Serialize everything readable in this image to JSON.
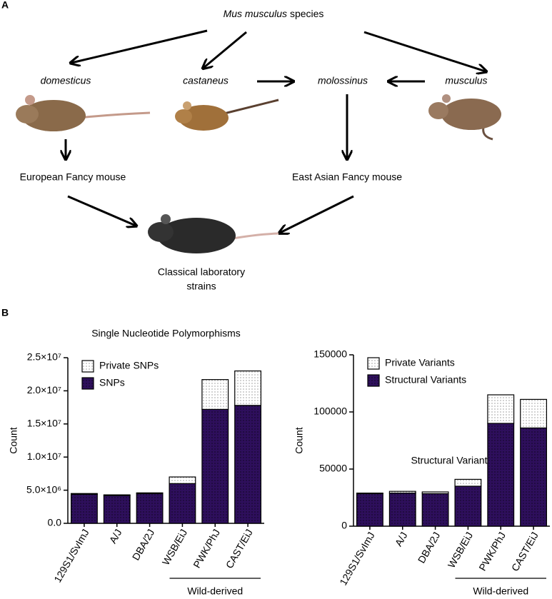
{
  "panel_a": {
    "label": "A",
    "root": {
      "name": "Mus musculus",
      "suffix": "species"
    },
    "subspecies": [
      "domesticus",
      "castaneus",
      "molossinus",
      "musculus"
    ],
    "fancy": [
      "European Fancy mouse",
      "East Asian Fancy mouse"
    ],
    "lab": [
      "Classical laboratory",
      "strains"
    ]
  },
  "panel_b": {
    "label": "B"
  },
  "chart_data": [
    {
      "type": "bar",
      "stacked": true,
      "title": "Single Nucleotide Polymorphisms",
      "ylabel": "Count",
      "categories": [
        "129S1/SvImJ",
        "A/J",
        "DBA/2J",
        "WSB/EiJ",
        "PWK/PhJ",
        "CAST/EiJ"
      ],
      "series": [
        {
          "name": "SNPs",
          "color": "#2e0f5c",
          "values": [
            4400000,
            4200000,
            4500000,
            6000000,
            17200000,
            17800000
          ]
        },
        {
          "name": "Private SNPs",
          "color": "#ffffff",
          "values": [
            100000,
            100000,
            100000,
            1000000,
            4500000,
            5200000
          ]
        }
      ],
      "ylim": [
        0,
        25000000
      ],
      "yticks": [
        {
          "value": 0,
          "label": "0.0"
        },
        {
          "value": 5000000,
          "label": "5.0×10⁶"
        },
        {
          "value": 10000000,
          "label": "1.0×10⁷"
        },
        {
          "value": 15000000,
          "label": "1.5×10⁷"
        },
        {
          "value": 20000000,
          "label": "2.0×10⁷"
        },
        {
          "value": 25000000,
          "label": "2.5×10⁷"
        }
      ],
      "legend": "upper left",
      "annotation": "Wild-derived"
    },
    {
      "type": "bar",
      "stacked": true,
      "title": "Structural Variants",
      "ylabel": "Count",
      "categories": [
        "129S1/SvImJ",
        "A/J",
        "DBA/2J",
        "WSB/EiJ",
        "PWK/PhJ",
        "CAST/EiJ"
      ],
      "series": [
        {
          "name": "Structural Variants",
          "color": "#2e0f5c",
          "values": [
            28500,
            29000,
            28500,
            35000,
            90000,
            86000
          ]
        },
        {
          "name": "Private Variants",
          "color": "#ffffff",
          "values": [
            500,
            1500,
            1500,
            6000,
            25000,
            25000
          ]
        }
      ],
      "ylim": [
        0,
        150000
      ],
      "yticks": [
        0,
        50000,
        100000,
        150000
      ],
      "legend": "upper left",
      "annotation": "Wild-derived"
    }
  ]
}
